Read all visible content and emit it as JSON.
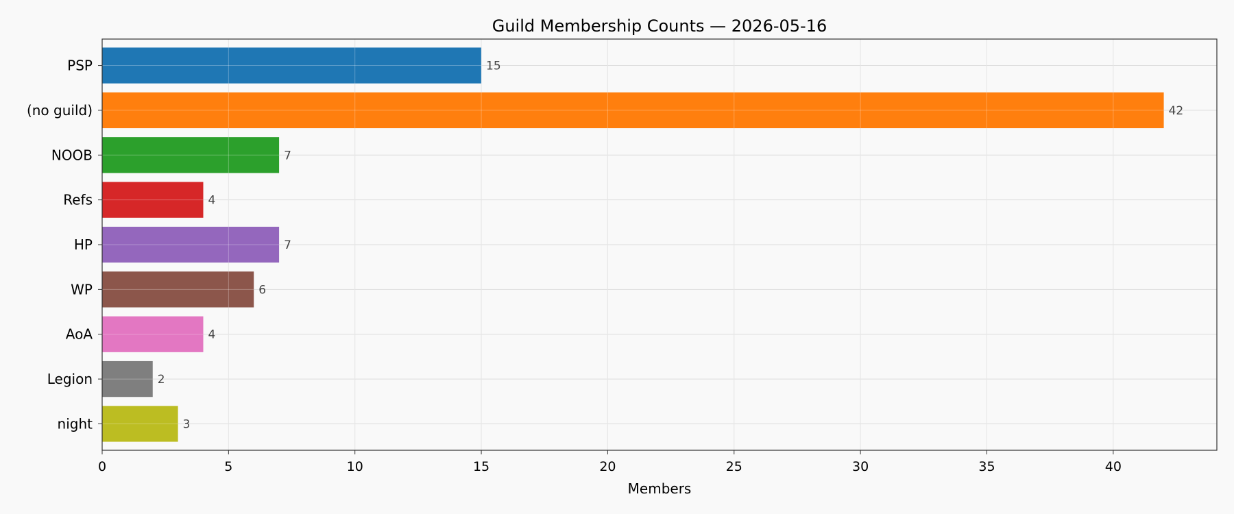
{
  "chart_data": {
    "type": "bar",
    "orientation": "horizontal",
    "title": "Guild Membership Counts — 2026-05-16",
    "xlabel": "Members",
    "ylabel": "",
    "categories": [
      "PSP",
      "(no guild)",
      "NOOB",
      "Refs",
      "HP",
      "WP",
      "AoA",
      "Legion",
      "night"
    ],
    "values": [
      15,
      42,
      7,
      4,
      7,
      6,
      4,
      2,
      3
    ],
    "value_labels": [
      "15",
      "42",
      "7",
      "4",
      "7",
      "6",
      "4",
      "2",
      "3"
    ],
    "colors": [
      "#1f77b4",
      "#ff7f0e",
      "#2ca02c",
      "#d62728",
      "#9467bd",
      "#8c564b",
      "#e377c2",
      "#7f7f7f",
      "#bcbd22"
    ],
    "xlim": [
      0,
      44.1
    ],
    "xticks": [
      0,
      5,
      10,
      15,
      20,
      25,
      30,
      35,
      40
    ],
    "xtick_labels": [
      "0",
      "5",
      "10",
      "15",
      "20",
      "25",
      "30",
      "35",
      "40"
    ],
    "grid": true,
    "legend": "none"
  }
}
